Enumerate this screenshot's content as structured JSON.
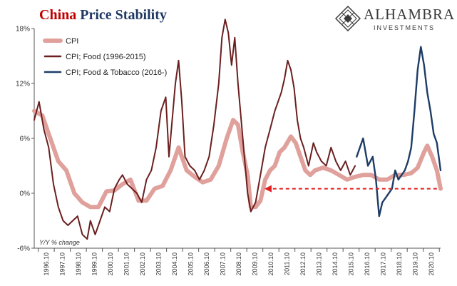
{
  "title": {
    "part1": "China",
    "part2": "Price Stability"
  },
  "logo": {
    "brand": "ALHAMBRA",
    "sub": "INVESTMENTS",
    "icon": "diamond-lattice-icon"
  },
  "unit_label": "Y/Y % change",
  "chart_data": {
    "type": "line",
    "ylim": [
      -6,
      18
    ],
    "yticks": [
      18,
      12,
      6,
      0,
      -6
    ],
    "ytick_labels": [
      "18%",
      "12%",
      "6%",
      "0%",
      "-6%"
    ],
    "xlim": [
      1995.5,
      2020.83
    ],
    "xtick_labels": [
      "1996.10",
      "1997.10",
      "1998.10",
      "1999.10",
      "2000.10",
      "2001.10",
      "2002.10",
      "2003.10",
      "2004.10",
      "2005.10",
      "2006.10",
      "2007.10",
      "2008.10",
      "2009.10",
      "2010.10",
      "2011.10",
      "2012.10",
      "2013.10",
      "2014.10",
      "2015.10",
      "2016.10",
      "2017.10",
      "2018.10",
      "2019.10",
      "2020.10"
    ],
    "grid": false,
    "legend": "top-left",
    "colors": {
      "cpi": "#e0a19c",
      "food": "#6b1f1f",
      "tobacco": "#1d3d66",
      "arrow": "#e02020"
    },
    "series": [
      {
        "name": "CPI",
        "x": [
          1995.5,
          1996.0,
          1996.5,
          1997.0,
          1997.5,
          1998.0,
          1998.5,
          1999.0,
          1999.5,
          2000.0,
          2000.5,
          2001.0,
          2001.5,
          2002.0,
          2002.5,
          2003.0,
          2003.5,
          2004.0,
          2004.5,
          2005.0,
          2005.5,
          2006.0,
          2006.5,
          2007.0,
          2007.5,
          2007.9,
          2008.2,
          2008.5,
          2008.8,
          2009.0,
          2009.3,
          2009.6,
          2009.9,
          2010.2,
          2010.5,
          2010.8,
          2011.1,
          2011.5,
          2011.8,
          2012.1,
          2012.4,
          2012.7,
          2013.0,
          2013.5,
          2014.0,
          2014.5,
          2015.0,
          2015.5,
          2016.0,
          2016.5,
          2017.0,
          2017.5,
          2018.0,
          2018.5,
          2019.0,
          2019.4,
          2019.8,
          2020.0,
          2020.3,
          2020.6,
          2020.83
        ],
        "values": [
          9.0,
          8.5,
          6.0,
          3.5,
          2.5,
          0.0,
          -1.0,
          -1.5,
          -1.5,
          0.2,
          0.3,
          1.0,
          1.5,
          -0.8,
          -0.8,
          0.5,
          0.8,
          2.5,
          5.0,
          2.5,
          1.8,
          1.2,
          1.5,
          3.0,
          6.0,
          8.0,
          7.5,
          4.5,
          2.0,
          -1.5,
          -1.5,
          -0.8,
          1.5,
          2.5,
          3.0,
          4.5,
          5.0,
          6.2,
          5.5,
          4.0,
          2.5,
          2.0,
          2.5,
          2.8,
          2.5,
          2.0,
          1.5,
          1.8,
          2.0,
          2.0,
          1.5,
          1.5,
          2.0,
          2.0,
          2.2,
          2.8,
          4.5,
          5.2,
          4.0,
          2.5,
          0.5
        ]
      },
      {
        "name": "CPI; Food (1996-2015)",
        "x": [
          1995.5,
          1995.8,
          1996.1,
          1996.4,
          1996.7,
          1997.0,
          1997.3,
          1997.6,
          1997.9,
          1998.2,
          1998.5,
          1998.8,
          1999.0,
          1999.3,
          1999.6,
          1999.9,
          2000.2,
          2000.5,
          2000.8,
          2001.0,
          2001.3,
          2001.6,
          2001.9,
          2002.2,
          2002.5,
          2002.8,
          2003.1,
          2003.4,
          2003.7,
          2003.9,
          2004.1,
          2004.3,
          2004.5,
          2004.7,
          2004.9,
          2005.2,
          2005.5,
          2005.8,
          2006.1,
          2006.4,
          2006.7,
          2007.0,
          2007.2,
          2007.4,
          2007.6,
          2007.8,
          2008.0,
          2008.2,
          2008.4,
          2008.6,
          2008.8,
          2009.0,
          2009.3,
          2009.6,
          2009.9,
          2010.2,
          2010.5,
          2010.7,
          2010.9,
          2011.1,
          2011.3,
          2011.5,
          2011.7,
          2011.9,
          2012.1,
          2012.3,
          2012.6,
          2012.9,
          2013.1,
          2013.4,
          2013.7,
          2014.0,
          2014.3,
          2014.6,
          2014.9,
          2015.2,
          2015.5
        ],
        "values": [
          8.0,
          10.0,
          7.0,
          5.0,
          1.0,
          -1.5,
          -3.0,
          -3.5,
          -3.0,
          -2.5,
          -4.5,
          -5.0,
          -3.0,
          -4.5,
          -3.0,
          -1.5,
          -2.0,
          0.5,
          1.5,
          2.0,
          1.0,
          0.5,
          0.0,
          -1.0,
          1.5,
          2.5,
          5.0,
          9.0,
          10.5,
          4.0,
          8.0,
          12.0,
          14.5,
          10.0,
          4.0,
          3.0,
          2.5,
          1.5,
          2.5,
          4.0,
          7.5,
          12.0,
          17.0,
          19.0,
          17.5,
          14.0,
          17.0,
          12.0,
          8.0,
          4.0,
          0.0,
          -2.0,
          -1.0,
          2.0,
          5.0,
          7.0,
          9.0,
          10.0,
          11.0,
          12.5,
          14.5,
          13.5,
          11.5,
          8.0,
          6.0,
          5.0,
          3.0,
          5.5,
          4.5,
          3.5,
          3.0,
          5.0,
          3.5,
          2.5,
          3.5,
          2.0,
          3.0
        ]
      },
      {
        "name": "CPI; Food & Tobacco (2016-)",
        "x": [
          2015.6,
          2015.8,
          2016.0,
          2016.3,
          2016.6,
          2016.8,
          2017.0,
          2017.2,
          2017.4,
          2017.6,
          2017.8,
          2018.0,
          2018.2,
          2018.4,
          2018.6,
          2018.8,
          2019.0,
          2019.2,
          2019.4,
          2019.6,
          2019.8,
          2020.0,
          2020.2,
          2020.4,
          2020.6,
          2020.83
        ],
        "values": [
          4.0,
          5.0,
          6.0,
          3.0,
          4.0,
          1.5,
          -2.5,
          -1.0,
          -0.5,
          0.0,
          0.5,
          2.5,
          1.5,
          2.0,
          2.5,
          3.5,
          5.0,
          9.0,
          13.5,
          16.0,
          14.0,
          11.0,
          9.0,
          6.5,
          5.5,
          2.5
        ]
      }
    ],
    "annotation": {
      "type": "arrow",
      "x_from": 2020.6,
      "x_to": 2009.85,
      "y": 0.5
    }
  }
}
